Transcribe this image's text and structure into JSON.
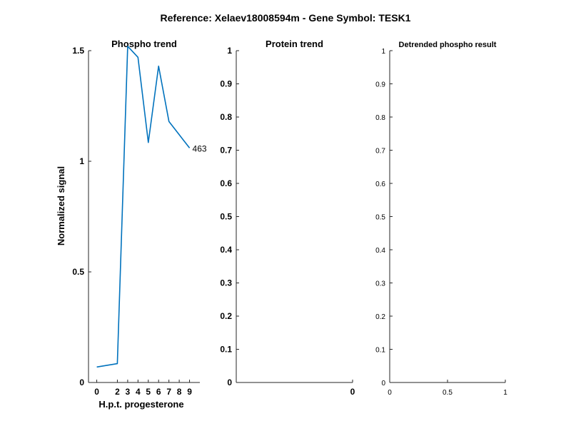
{
  "figure": {
    "suptitle": "Reference:  Xelaev18008594m - Gene Symbol:  TESK1"
  },
  "chart_data": [
    {
      "type": "line",
      "title": "Phospho trend",
      "xlabel": "H.p.t. progesterone",
      "ylabel": "Normalized signal",
      "xlim": [
        -0.8,
        10
      ],
      "ylim": [
        0,
        1.5
      ],
      "xticks": [
        0,
        2,
        3,
        4,
        5,
        6,
        7,
        8,
        9
      ],
      "yticks": [
        0,
        0.5,
        1,
        1.5
      ],
      "ytick_labels": [
        "0",
        "0.5",
        "1",
        "1.5"
      ],
      "grid": false,
      "series": [
        {
          "color": "#0072BD",
          "x": [
            0,
            2,
            3,
            4,
            5,
            6,
            7,
            8,
            9
          ],
          "y": [
            0.07,
            0.085,
            1.52,
            1.47,
            1.085,
            1.43,
            1.18,
            1.12,
            1.06
          ],
          "end_label": "463"
        }
      ]
    },
    {
      "type": "line",
      "title": "Protein trend",
      "xlim": [
        -1,
        0
      ],
      "ylim": [
        0,
        1
      ],
      "xticks": [
        0
      ],
      "xtick_labels": [
        "0"
      ],
      "yticks": [
        0,
        0.1,
        0.2,
        0.3,
        0.4,
        0.5,
        0.6,
        0.7,
        0.8,
        0.9,
        1
      ],
      "ytick_labels": [
        "0",
        "0.1",
        "0.2",
        "0.3",
        "0.4",
        "0.5",
        "0.6",
        "0.7",
        "0.8",
        "0.9",
        "1"
      ],
      "grid": false,
      "series": []
    },
    {
      "type": "line",
      "title": "Detrended phospho result",
      "xlim": [
        0,
        1
      ],
      "ylim": [
        0,
        1
      ],
      "xticks": [
        0,
        0.5,
        1
      ],
      "xtick_labels": [
        "0",
        "0.5",
        "1"
      ],
      "yticks": [
        0,
        0.1,
        0.2,
        0.3,
        0.4,
        0.5,
        0.6,
        0.7,
        0.8,
        0.9,
        1
      ],
      "ytick_labels": [
        "0",
        "0.1",
        "0.2",
        "0.3",
        "0.4",
        "0.5",
        "0.6",
        "0.7",
        "0.8",
        "0.9",
        "1"
      ],
      "grid": false,
      "series": []
    }
  ]
}
